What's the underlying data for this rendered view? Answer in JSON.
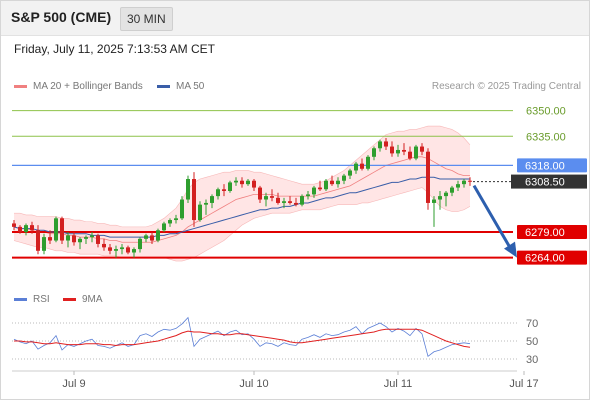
{
  "header": {
    "title": "S&P 500 (CME)",
    "interval": "30 MIN"
  },
  "datetime": "Friday, July 11, 2025 7:13:53 AM CET",
  "legend": {
    "bollinger": "MA 20 + Bollinger Bands",
    "ma50": "MA 50",
    "credit": "Research © 2025 Trading Central"
  },
  "rsi_legend": {
    "rsi": "RSI",
    "ma9": "9MA"
  },
  "colors": {
    "bollinger": "#f08080",
    "bollinger_fill": "#ffdcdc",
    "ma50": "#3a5ea8",
    "support": "#e00000",
    "pivot": "#5b8def",
    "target": "#8ec24a",
    "bull": "#2e9e2e",
    "bear": "#d32020",
    "arrow": "#2d5fae",
    "price": "#333333",
    "rsi": "#5b7fd6",
    "rsi_ma": "#e02020"
  },
  "chart_data": {
    "type": "candlestick",
    "price_axis": {
      "ylim": [
        6255,
        6358
      ]
    },
    "levels": [
      {
        "label": "6350.00",
        "value": 6350,
        "kind": "target"
      },
      {
        "label": "6335.00",
        "value": 6335,
        "kind": "target"
      },
      {
        "label": "6318.00",
        "value": 6318,
        "kind": "pivot"
      },
      {
        "label": "6279.00",
        "value": 6279,
        "kind": "support"
      },
      {
        "label": "6264.00",
        "value": 6264,
        "kind": "support"
      }
    ],
    "last_price": {
      "label": "6308.50",
      "value": 6308.5
    },
    "x_labels": [
      "Jul 9",
      "Jul 10",
      "Jul 11",
      "Jul 17"
    ],
    "x_label_index": [
      10,
      40,
      64,
      85
    ],
    "candles": [
      [
        6284,
        6286,
        6280,
        6282
      ],
      [
        6282,
        6283,
        6278,
        6279
      ],
      [
        6279,
        6284,
        6277,
        6283
      ],
      [
        6283,
        6285,
        6278,
        6280
      ],
      [
        6280,
        6283,
        6266,
        6268
      ],
      [
        6268,
        6278,
        6266,
        6276
      ],
      [
        6276,
        6280,
        6272,
        6274
      ],
      [
        6274,
        6288,
        6273,
        6287
      ],
      [
        6287,
        6288,
        6272,
        6274
      ],
      [
        6274,
        6279,
        6270,
        6277
      ],
      [
        6277,
        6279,
        6271,
        6273
      ],
      [
        6273,
        6276,
        6269,
        6275
      ],
      [
        6275,
        6277,
        6272,
        6276
      ],
      [
        6276,
        6279,
        6273,
        6277
      ],
      [
        6277,
        6278,
        6270,
        6272
      ],
      [
        6272,
        6275,
        6268,
        6270
      ],
      [
        6270,
        6272,
        6266,
        6268
      ],
      [
        6268,
        6271,
        6264,
        6269
      ],
      [
        6269,
        6272,
        6266,
        6270
      ],
      [
        6270,
        6271,
        6266,
        6267
      ],
      [
        6267,
        6270,
        6264,
        6269
      ],
      [
        6269,
        6276,
        6267,
        6275
      ],
      [
        6275,
        6278,
        6273,
        6277
      ],
      [
        6277,
        6279,
        6272,
        6274
      ],
      [
        6274,
        6281,
        6273,
        6280
      ],
      [
        6280,
        6285,
        6279,
        6284
      ],
      [
        6284,
        6287,
        6282,
        6286
      ],
      [
        6286,
        6289,
        6284,
        6287
      ],
      [
        6287,
        6300,
        6286,
        6298
      ],
      [
        6298,
        6312,
        6296,
        6310
      ],
      [
        6310,
        6314,
        6282,
        6286
      ],
      [
        6286,
        6297,
        6285,
        6295
      ],
      [
        6295,
        6298,
        6289,
        6296
      ],
      [
        6296,
        6301,
        6293,
        6300
      ],
      [
        6300,
        6305,
        6298,
        6304
      ],
      [
        6304,
        6307,
        6300,
        6303
      ],
      [
        6303,
        6309,
        6302,
        6308
      ],
      [
        6308,
        6311,
        6306,
        6309
      ],
      [
        6309,
        6311,
        6305,
        6307
      ],
      [
        6307,
        6310,
        6306,
        6309
      ],
      [
        6309,
        6310,
        6303,
        6305
      ],
      [
        6305,
        6306,
        6296,
        6298
      ],
      [
        6298,
        6302,
        6294,
        6300
      ],
      [
        6300,
        6304,
        6297,
        6299
      ],
      [
        6299,
        6302,
        6295,
        6296
      ],
      [
        6296,
        6299,
        6293,
        6297
      ],
      [
        6297,
        6300,
        6295,
        6296
      ],
      [
        6296,
        6299,
        6294,
        6295
      ],
      [
        6295,
        6301,
        6294,
        6300
      ],
      [
        6300,
        6303,
        6298,
        6301
      ],
      [
        6301,
        6306,
        6299,
        6305
      ],
      [
        6305,
        6309,
        6303,
        6304
      ],
      [
        6304,
        6310,
        6303,
        6309
      ],
      [
        6309,
        6312,
        6306,
        6307
      ],
      [
        6307,
        6311,
        6305,
        6309
      ],
      [
        6309,
        6313,
        6307,
        6312
      ],
      [
        6312,
        6316,
        6310,
        6315
      ],
      [
        6315,
        6320,
        6313,
        6319
      ],
      [
        6319,
        6322,
        6315,
        6316
      ],
      [
        6316,
        6324,
        6315,
        6323
      ],
      [
        6323,
        6329,
        6321,
        6328
      ],
      [
        6328,
        6333,
        6326,
        6332
      ],
      [
        6332,
        6334,
        6327,
        6329
      ],
      [
        6329,
        6332,
        6323,
        6325
      ],
      [
        6325,
        6330,
        6323,
        6327
      ],
      [
        6327,
        6331,
        6324,
        6326
      ],
      [
        6326,
        6329,
        6321,
        6322
      ],
      [
        6322,
        6330,
        6321,
        6329
      ],
      [
        6329,
        6331,
        6324,
        6326
      ],
      [
        6326,
        6328,
        6292,
        6296
      ],
      [
        6296,
        6300,
        6282,
        6298
      ],
      [
        6298,
        6303,
        6292,
        6300
      ],
      [
        6300,
        6303,
        6294,
        6302
      ],
      [
        6302,
        6306,
        6300,
        6305
      ],
      [
        6305,
        6309,
        6303,
        6307
      ],
      [
        6307,
        6310,
        6305,
        6309
      ],
      [
        6309,
        6311,
        6306,
        6308.5
      ]
    ],
    "ma20": [
      6282,
      6281,
      6281,
      6280,
      6279,
      6279,
      6278,
      6278,
      6278,
      6277,
      6277,
      6276,
      6276,
      6276,
      6275,
      6275,
      6274,
      6274,
      6273,
      6273,
      6273,
      6273,
      6273,
      6273,
      6274,
      6275,
      6276,
      6277,
      6279,
      6282,
      6284,
      6286,
      6288,
      6290,
      6292,
      6294,
      6296,
      6298,
      6299,
      6300,
      6301,
      6301,
      6301,
      6301,
      6300,
      6300,
      6300,
      6300,
      6300,
      6300,
      6300,
      6301,
      6302,
      6303,
      6304,
      6305,
      6306,
      6308,
      6310,
      6312,
      6314,
      6316,
      6318,
      6319,
      6320,
      6321,
      6322,
      6323,
      6323,
      6322,
      6320,
      6318,
      6316,
      6315,
      6313,
      6312,
      6312
    ],
    "bb_upper": [
      6290,
      6290,
      6289,
      6289,
      6288,
      6288,
      6288,
      6288,
      6287,
      6287,
      6286,
      6286,
      6285,
      6285,
      6284,
      6284,
      6283,
      6283,
      6282,
      6282,
      6282,
      6282,
      6282,
      6283,
      6285,
      6287,
      6290,
      6293,
      6298,
      6304,
      6308,
      6310,
      6311,
      6312,
      6313,
      6314,
      6314,
      6315,
      6315,
      6315,
      6314,
      6314,
      6313,
      6312,
      6311,
      6310,
      6309,
      6308,
      6307,
      6307,
      6307,
      6308,
      6309,
      6311,
      6313,
      6315,
      6318,
      6321,
      6324,
      6327,
      6330,
      6333,
      6336,
      6337,
      6338,
      6338,
      6339,
      6339,
      6340,
      6341,
      6341,
      6341,
      6340,
      6339,
      6337,
      6334,
      6330
    ],
    "bb_lower": [
      6274,
      6273,
      6272,
      6271,
      6270,
      6270,
      6269,
      6268,
      6268,
      6267,
      6267,
      6266,
      6266,
      6266,
      6266,
      6265,
      6265,
      6265,
      6264,
      6264,
      6264,
      6264,
      6264,
      6264,
      6264,
      6264,
      6263,
      6262,
      6262,
      6263,
      6264,
      6266,
      6268,
      6270,
      6272,
      6274,
      6277,
      6280,
      6283,
      6285,
      6287,
      6288,
      6289,
      6290,
      6290,
      6290,
      6290,
      6291,
      6292,
      6292,
      6292,
      6292,
      6293,
      6294,
      6295,
      6295,
      6295,
      6295,
      6296,
      6296,
      6297,
      6298,
      6299,
      6300,
      6301,
      6302,
      6303,
      6304,
      6305,
      6302,
      6298,
      6294,
      6292,
      6291,
      6291,
      6292,
      6294
    ],
    "ma50": [
      6282,
      6281,
      6281,
      6281,
      6280,
      6280,
      6279,
      6279,
      6279,
      6278,
      6278,
      6278,
      6278,
      6277,
      6277,
      6277,
      6276,
      6276,
      6276,
      6276,
      6276,
      6276,
      6276,
      6276,
      6277,
      6277,
      6278,
      6278,
      6279,
      6280,
      6281,
      6282,
      6283,
      6284,
      6285,
      6286,
      6287,
      6288,
      6289,
      6290,
      6291,
      6292,
      6292,
      6293,
      6293,
      6294,
      6294,
      6295,
      6296,
      6296,
      6297,
      6298,
      6299,
      6299,
      6300,
      6301,
      6302,
      6302,
      6303,
      6304,
      6305,
      6306,
      6307,
      6308,
      6308,
      6309,
      6310,
      6310,
      6311,
      6311,
      6311,
      6310,
      6310,
      6310,
      6310,
      6310,
      6310
    ],
    "projection": {
      "from": 6308.5,
      "to": 6264
    },
    "rsi": {
      "ylim": [
        20,
        80
      ],
      "levels": [
        30,
        50,
        70
      ],
      "level_labels": [
        "70",
        "50",
        "30"
      ],
      "rsi": [
        52,
        49,
        47,
        50,
        41,
        45,
        48,
        56,
        40,
        46,
        44,
        47,
        50,
        52,
        45,
        44,
        42,
        45,
        48,
        44,
        46,
        56,
        58,
        55,
        60,
        63,
        62,
        64,
        69,
        76,
        44,
        52,
        55,
        58,
        61,
        56,
        60,
        62,
        57,
        58,
        52,
        44,
        48,
        47,
        44,
        48,
        46,
        45,
        52,
        54,
        57,
        54,
        58,
        56,
        57,
        60,
        62,
        66,
        58,
        64,
        67,
        70,
        66,
        60,
        64,
        61,
        56,
        64,
        58,
        33,
        38,
        40,
        43,
        46,
        47,
        48,
        47
      ],
      "ma9": [
        50,
        50,
        49,
        49,
        48,
        47,
        47,
        48,
        47,
        46,
        46,
        46,
        47,
        47,
        47,
        46,
        46,
        45,
        46,
        46,
        46,
        47,
        48,
        49,
        50,
        52,
        54,
        56,
        59,
        61,
        60,
        60,
        59,
        58,
        58,
        57,
        57,
        58,
        58,
        57,
        56,
        55,
        54,
        53,
        52,
        51,
        49,
        48,
        48,
        49,
        50,
        51,
        52,
        53,
        54,
        55,
        56,
        57,
        58,
        59,
        60,
        62,
        63,
        63,
        63,
        63,
        63,
        63,
        62,
        59,
        56,
        53,
        50,
        48,
        46,
        44,
        43
      ]
    }
  }
}
